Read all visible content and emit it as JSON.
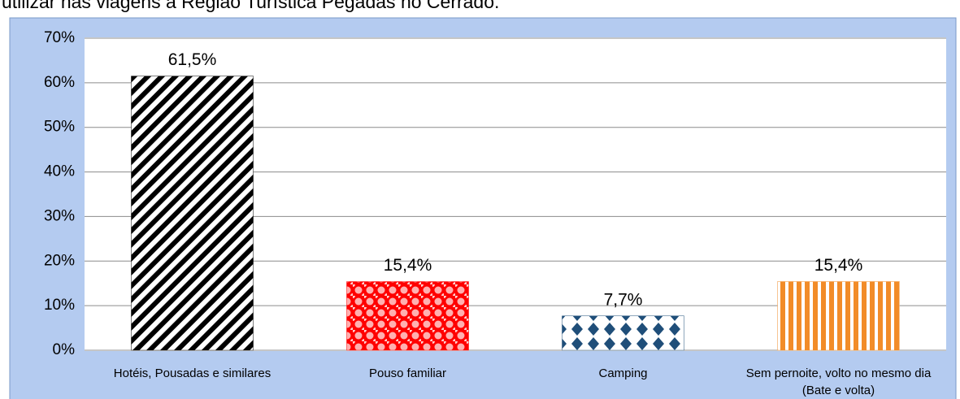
{
  "caption": "utilizar nas viagens à Região Turística Pegadas no Cerrado.",
  "chart_data": {
    "type": "bar",
    "categories": [
      "Hotéis, Pousadas e similares",
      "Pouso familiar",
      "Camping",
      "Sem pernoite, volto no mesmo dia (Bate e volta)"
    ],
    "values": [
      61.5,
      15.4,
      7.7,
      15.4
    ],
    "value_labels": [
      "61,5%",
      "15,4%",
      "7,7%",
      "15,4%"
    ],
    "colors": [
      "#000000",
      "#ff0000",
      "#1f4e79",
      "#f28c28"
    ],
    "ylim": [
      0,
      70
    ],
    "yticks": [
      {
        "value": 0,
        "label": "0%"
      },
      {
        "value": 10,
        "label": "10%"
      },
      {
        "value": 20,
        "label": "20%"
      },
      {
        "value": 30,
        "label": "30%"
      },
      {
        "value": 40,
        "label": "40%"
      },
      {
        "value": 50,
        "label": "50%"
      },
      {
        "value": 60,
        "label": "60%"
      },
      {
        "value": 70,
        "label": "70%"
      }
    ],
    "grid": true
  }
}
